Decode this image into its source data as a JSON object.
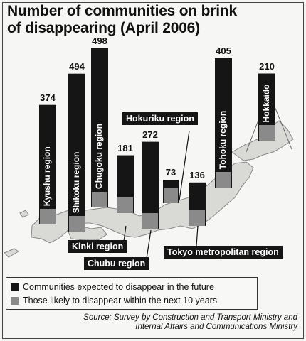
{
  "title_line1": "Number of communities on brink",
  "title_line2": "of disappearing (April 2006)",
  "colors": {
    "future": "#151515",
    "within10": "#8a8a8a",
    "map": "#d9d9d6"
  },
  "chart_data": {
    "type": "bar",
    "title": "Number of communities on brink of disappearing (April 2006)",
    "categories": [
      "Kyushu region",
      "Shikoku region",
      "Chugoku region",
      "Kinki region",
      "Chubu region",
      "Hokuriku region",
      "Tokyo metropolitan region",
      "Tohoku region",
      "Hokkaido"
    ],
    "series": [
      {
        "name": "Communities expected to disappear in the future",
        "values": [
          374,
          494,
          498,
          181,
          272,
          73,
          136,
          405,
          210
        ]
      }
    ],
    "value_labels": [
      "374",
      "494",
      "498",
      "181",
      "272",
      "73",
      "136",
      "405",
      "210"
    ]
  },
  "legend": {
    "future": "Communities expected to disappear in the future",
    "within10": "Those likely to disappear within the next 10 years"
  },
  "source_line1": "Source: Survey by Construction and Transport Ministry and",
  "source_line2": "Internal Affairs and Communications Ministry"
}
